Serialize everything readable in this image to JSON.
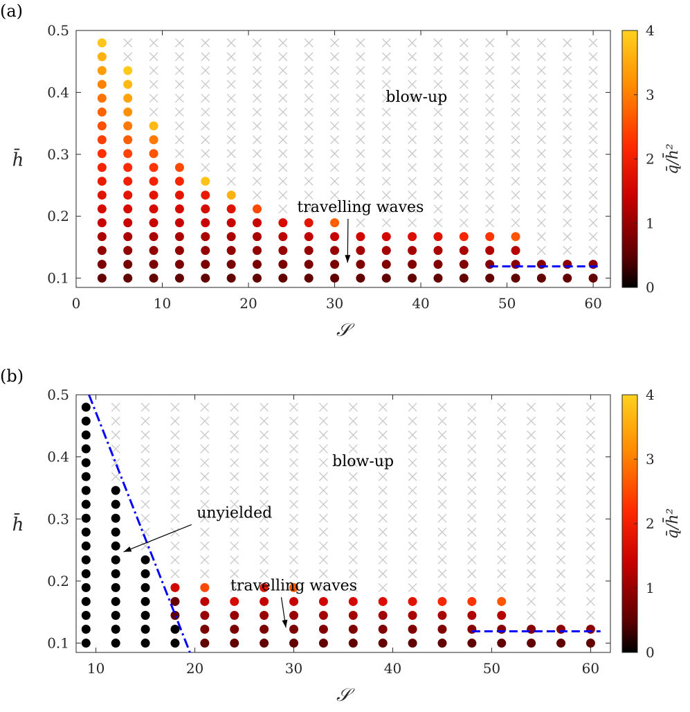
{
  "chart_data": [
    {
      "type": "scatter",
      "panel_label": "(a)",
      "xlabel": "𝒮",
      "ylabel": "h̄",
      "xlim": [
        0,
        62
      ],
      "ylim": [
        0.085,
        0.5
      ],
      "xticks": [
        0,
        10,
        20,
        30,
        40,
        50,
        60
      ],
      "yticks": [
        0.1,
        0.2,
        0.3,
        0.4,
        0.5
      ],
      "colorbar": {
        "label": "q̄/h̄²",
        "min": 0,
        "max": 4,
        "ticks": [
          0,
          1,
          2,
          3,
          4
        ],
        "colormap": "hot"
      },
      "annotations": [
        {
          "text": "blow-up",
          "x": 39.5,
          "y": 0.385,
          "arrow": false
        },
        {
          "text": "travelling waves",
          "x": 33,
          "y": 0.207,
          "arrow": true,
          "arrow_to": [
            31.5,
            0.125
          ]
        }
      ],
      "blowup_marker": "x",
      "blowup_color": "#c8c8c8",
      "dashed_line": {
        "x": [
          48,
          61
        ],
        "y": [
          0.119,
          0.119
        ],
        "color": "#0000ff",
        "style": "dashed"
      },
      "dot_columns": [
        {
          "x": 3,
          "values": [
            0.55,
            0.75,
            0.95,
            1.15,
            1.4,
            1.6,
            1.75,
            1.9,
            2.05,
            2.25,
            2.4,
            2.55,
            2.75,
            2.9,
            3.05,
            3.35,
            3.6,
            3.85
          ]
        },
        {
          "x": 6,
          "values": [
            0.55,
            0.75,
            0.95,
            1.15,
            1.4,
            1.6,
            1.8,
            2.0,
            2.2,
            2.45,
            2.7,
            2.95,
            3.2,
            3.45,
            3.7,
            3.9
          ]
        },
        {
          "x": 9,
          "values": [
            0.55,
            0.75,
            0.95,
            1.15,
            1.4,
            1.6,
            1.8,
            2.05,
            2.3,
            2.6,
            2.95,
            3.7
          ]
        },
        {
          "x": 12,
          "values": [
            0.55,
            0.75,
            0.95,
            1.15,
            1.4,
            1.6,
            1.8,
            2.1,
            2.5
          ]
        },
        {
          "x": 15,
          "values": [
            0.55,
            0.75,
            0.95,
            1.15,
            1.4,
            1.6,
            1.9,
            3.8
          ]
        },
        {
          "x": 18,
          "values": [
            0.55,
            0.75,
            0.95,
            1.15,
            1.4,
            1.75,
            3.6
          ]
        },
        {
          "x": 21,
          "values": [
            0.55,
            0.75,
            0.95,
            1.15,
            1.4,
            2.5
          ]
        },
        {
          "x": 24,
          "values": [
            0.55,
            0.75,
            1.0,
            1.3,
            1.6
          ]
        },
        {
          "x": 27,
          "values": [
            0.55,
            0.75,
            1.0,
            1.35,
            1.8
          ]
        },
        {
          "x": 30,
          "values": [
            0.55,
            0.75,
            1.0,
            1.4,
            2.7
          ]
        },
        {
          "x": 33,
          "values": [
            0.55,
            0.8,
            1.1,
            1.5
          ]
        },
        {
          "x": 36,
          "values": [
            0.55,
            0.8,
            1.1,
            1.55
          ]
        },
        {
          "x": 39,
          "values": [
            0.55,
            0.8,
            1.1,
            1.65
          ]
        },
        {
          "x": 42,
          "values": [
            0.55,
            0.8,
            1.15,
            1.75
          ]
        },
        {
          "x": 45,
          "values": [
            0.55,
            0.8,
            1.15,
            2.1
          ]
        },
        {
          "x": 48,
          "values": [
            0.55,
            0.85,
            1.2,
            2.3
          ]
        },
        {
          "x": 51,
          "values": [
            0.55,
            0.85,
            1.25,
            2.6
          ]
        },
        {
          "x": 54,
          "values": [
            0.55,
            0.85
          ]
        },
        {
          "x": 57,
          "values": [
            0.55,
            0.9
          ]
        },
        {
          "x": 60,
          "values": [
            0.55,
            0.9
          ]
        }
      ]
    },
    {
      "type": "scatter",
      "panel_label": "(b)",
      "xlabel": "𝒮",
      "ylabel": "h̄",
      "xlim": [
        8,
        62
      ],
      "ylim": [
        0.085,
        0.5
      ],
      "xticks": [
        10,
        20,
        30,
        40,
        50,
        60
      ],
      "yticks": [
        0.1,
        0.2,
        0.3,
        0.4,
        0.5
      ],
      "colorbar": {
        "label": "q̄/h̄²",
        "min": 0,
        "max": 4,
        "ticks": [
          0,
          1,
          2,
          3,
          4
        ],
        "colormap": "hot"
      },
      "annotations": [
        {
          "text": "blow-up",
          "x": 37,
          "y": 0.385,
          "arrow": false
        },
        {
          "text": "unyielded",
          "x": 24,
          "y": 0.302,
          "arrow": true,
          "arrow_to": [
            12.8,
            0.247
          ]
        },
        {
          "text": "travelling waves",
          "x": 30,
          "y": 0.185,
          "arrow": true,
          "arrow_to": [
            29.2,
            0.125
          ]
        }
      ],
      "blowup_marker": "x",
      "blowup_color": "#c8c8c8",
      "dashdot_line": {
        "x": [
          9.3,
          19.5
        ],
        "y": [
          0.5,
          0.085
        ],
        "color": "#0000ff",
        "style": "dashdot"
      },
      "dashed_line": {
        "x": [
          48,
          61
        ],
        "y": [
          0.119,
          0.119
        ],
        "color": "#0000ff",
        "style": "dashed"
      },
      "dot_columns": [
        {
          "x": 9,
          "values": [
            0,
            0,
            0,
            0,
            0,
            0,
            0,
            0,
            0,
            0,
            0,
            0,
            0,
            0,
            0,
            0,
            0,
            0
          ]
        },
        {
          "x": 12,
          "values": [
            0,
            0,
            0,
            0,
            0,
            0,
            0,
            0,
            0,
            0,
            0,
            0
          ]
        },
        {
          "x": 15,
          "values": [
            0,
            0,
            0,
            0,
            0,
            0,
            0
          ]
        },
        {
          "x": 18,
          "values": [
            0,
            0,
            0.5,
            0.6,
            1.55
          ]
        },
        {
          "x": 21,
          "values": [
            0.55,
            0.75,
            1.0,
            1.3,
            2.5
          ]
        },
        {
          "x": 24,
          "values": [
            0.55,
            0.75,
            1.0,
            1.6
          ]
        },
        {
          "x": 27,
          "values": [
            0.55,
            0.75,
            1.0,
            1.35,
            1.8
          ]
        },
        {
          "x": 30,
          "values": [
            0.55,
            0.75,
            1.0,
            1.4,
            2.7
          ]
        },
        {
          "x": 33,
          "values": [
            0.55,
            0.8,
            1.1,
            1.5
          ]
        },
        {
          "x": 36,
          "values": [
            0.55,
            0.8,
            1.1,
            1.55
          ]
        },
        {
          "x": 39,
          "values": [
            0.55,
            0.8,
            1.1,
            1.65
          ]
        },
        {
          "x": 42,
          "values": [
            0.55,
            0.8,
            1.15,
            1.75
          ]
        },
        {
          "x": 45,
          "values": [
            0.55,
            0.8,
            1.15,
            2.1
          ]
        },
        {
          "x": 48,
          "values": [
            0.55,
            0.85,
            1.2,
            2.3
          ]
        },
        {
          "x": 51,
          "values": [
            0.55,
            0.85,
            1.25,
            2.6
          ]
        },
        {
          "x": 54,
          "values": [
            0.55,
            0.85
          ]
        },
        {
          "x": 57,
          "values": [
            0.55,
            0.9
          ]
        },
        {
          "x": 60,
          "values": [
            0.55,
            0.9
          ]
        }
      ]
    }
  ]
}
